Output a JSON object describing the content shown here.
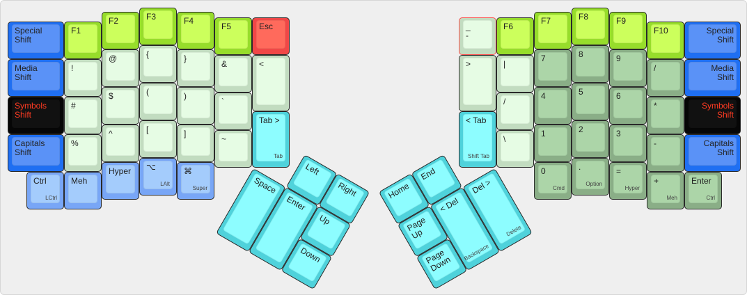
{
  "colors": {
    "blue": [
      "#1f6ff2",
      "#5a92f7"
    ],
    "lime": [
      "#97dd2b",
      "#ccff5c"
    ],
    "red": [
      "#f04747",
      "#ff6a5c"
    ],
    "mint": [
      "#c2dcc0",
      "#e6fce4"
    ],
    "cyan": [
      "#4fd2db",
      "#8dfdff"
    ],
    "lightblue": [
      "#78a6f6",
      "#a4ccfc"
    ],
    "green": [
      "#8aae87",
      "#acd5a8"
    ],
    "black": [
      "#060606",
      "#111111"
    ],
    "shift_text": "#ff3b22"
  },
  "left": {
    "keys": [
      {
        "label": "Special\nShift",
        "color": "blue"
      },
      {
        "label": "Media\nShift",
        "color": "blue"
      },
      {
        "label": "Symbols\nShift",
        "color": "black"
      },
      {
        "label": "Capitals\nShift",
        "color": "blue"
      },
      {
        "label": "Ctrl",
        "sub": "LCtrl",
        "color": "lightblue"
      },
      {
        "label": "F1",
        "color": "lime"
      },
      {
        "label": "!",
        "color": "mint"
      },
      {
        "label": "#",
        "color": "mint"
      },
      {
        "label": "%",
        "color": "mint"
      },
      {
        "label": "Meh",
        "color": "lightblue"
      },
      {
        "label": "F2",
        "color": "lime"
      },
      {
        "label": "@",
        "color": "mint"
      },
      {
        "label": "$",
        "color": "mint"
      },
      {
        "label": "^",
        "color": "mint"
      },
      {
        "label": "Hyper",
        "color": "lightblue"
      },
      {
        "label": "F3",
        "color": "lime"
      },
      {
        "label": "{",
        "color": "mint"
      },
      {
        "label": "(",
        "color": "mint"
      },
      {
        "label": "[",
        "color": "mint"
      },
      {
        "label": "⌥",
        "sub": "LAlt",
        "color": "lightblue"
      },
      {
        "label": "F4",
        "color": "lime"
      },
      {
        "label": "}",
        "color": "mint"
      },
      {
        "label": ")",
        "color": "mint"
      },
      {
        "label": "]",
        "color": "mint"
      },
      {
        "label": "⌘",
        "sub": "Super",
        "color": "lightblue"
      },
      {
        "label": "F5",
        "color": "lime"
      },
      {
        "label": "&",
        "color": "mint"
      },
      {
        "label": "`",
        "color": "mint"
      },
      {
        "label": "~",
        "color": "mint"
      },
      {
        "label": "Esc",
        "color": "red"
      },
      {
        "label": "<",
        "color": "mint"
      },
      {
        "label": "Tab >",
        "sub": "Tab",
        "color": "cyan"
      }
    ],
    "thumb": [
      {
        "label": "Left",
        "color": "cyan"
      },
      {
        "label": "Right",
        "color": "cyan"
      },
      {
        "label": "Space",
        "color": "cyan"
      },
      {
        "label": "Enter",
        "color": "cyan"
      },
      {
        "label": "Up",
        "color": "cyan"
      },
      {
        "label": "Down",
        "color": "cyan"
      }
    ]
  },
  "right": {
    "keys": [
      {
        "label": "Special\nShift",
        "color": "blue"
      },
      {
        "label": "Media\nShift",
        "color": "blue"
      },
      {
        "label": "Symbols\nShift",
        "color": "black"
      },
      {
        "label": "Capitals\nShift",
        "color": "blue"
      },
      {
        "label": "Enter",
        "sub": "Ctrl",
        "color": "green"
      },
      {
        "label": "F10",
        "color": "lime"
      },
      {
        "label": "/",
        "color": "green"
      },
      {
        "label": "*",
        "color": "green"
      },
      {
        "label": "-",
        "color": "green"
      },
      {
        "label": "+",
        "sub": "Meh",
        "color": "green"
      },
      {
        "label": "F9",
        "color": "lime"
      },
      {
        "label": "9",
        "color": "green"
      },
      {
        "label": "6",
        "color": "green"
      },
      {
        "label": "3",
        "color": "green"
      },
      {
        "label": "=",
        "sub": "Hyper",
        "color": "green"
      },
      {
        "label": "F8",
        "color": "lime"
      },
      {
        "label": "8",
        "color": "green"
      },
      {
        "label": "5",
        "color": "green"
      },
      {
        "label": "2",
        "color": "green"
      },
      {
        "label": ".",
        "sub": "Option",
        "color": "green"
      },
      {
        "label": "F7",
        "color": "lime"
      },
      {
        "label": "7",
        "color": "green"
      },
      {
        "label": "4",
        "color": "green"
      },
      {
        "label": "1",
        "color": "green"
      },
      {
        "label": "0",
        "sub": "Cmd",
        "color": "green"
      },
      {
        "label": "F6",
        "color": "lime"
      },
      {
        "label": "|",
        "color": "mint"
      },
      {
        "label": "/",
        "color": "mint"
      },
      {
        "label": "\\",
        "color": "mint"
      },
      {
        "label": "_\n-",
        "color": "mint"
      },
      {
        "label": ">",
        "color": "mint"
      },
      {
        "label": "< Tab",
        "sub": "Shift Tab",
        "color": "cyan"
      }
    ],
    "thumb": [
      {
        "label": "Home",
        "color": "cyan"
      },
      {
        "label": "End",
        "color": "cyan"
      },
      {
        "label": "Page\nUp",
        "color": "cyan"
      },
      {
        "label": "Page\nDown",
        "color": "cyan"
      },
      {
        "label": "< Del",
        "sub": "Backspace",
        "color": "cyan"
      },
      {
        "label": "Del >",
        "sub": "Delete",
        "color": "cyan"
      }
    ]
  }
}
